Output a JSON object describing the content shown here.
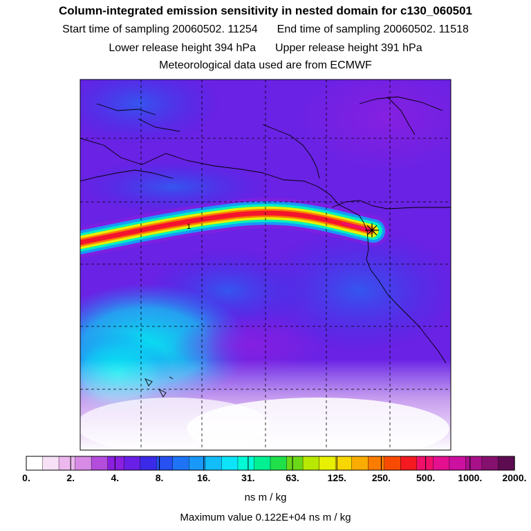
{
  "header": {
    "title": "Column-integrated emission sensitivity in nested domain for c130_060501",
    "start_label": "Start time of sampling 20060502. 11254",
    "end_label": "End time of sampling 20060502. 11518",
    "lower_label": "Lower release height  394 hPa",
    "upper_label": "Upper release height  391 hPa",
    "met_label": "Meteorological data used are from ECMWF"
  },
  "map": {
    "plume_label": "1",
    "receptor_marker": "receptor-star-icon"
  },
  "colorbar": {
    "ticks": [
      "0.",
      "2.",
      "4.",
      "8.",
      "16.",
      "31.",
      "63.",
      "125.",
      "250.",
      "500.",
      "1000.",
      "2000."
    ],
    "colors": [
      "#ffffff",
      "#f7e1f7",
      "#ecb8ee",
      "#d78ae6",
      "#b44ddc",
      "#8a1fe0",
      "#6a1fe6",
      "#3b2be8",
      "#2650f0",
      "#1e74f5",
      "#1898f8",
      "#12bdfa",
      "#0de4fa",
      "#00fad6",
      "#00f092",
      "#20e04a",
      "#6ad818",
      "#b8e800",
      "#e6f000",
      "#f8d600",
      "#fcac00",
      "#fc7c00",
      "#fa4a00",
      "#f41a20",
      "#f0106a",
      "#e41090",
      "#cc10a0",
      "#a8108a",
      "#86106e",
      "#5e0c52"
    ],
    "units": "ns m / kg",
    "max_value_label": "Maximum value  0.122E+04 ns m / kg"
  }
}
